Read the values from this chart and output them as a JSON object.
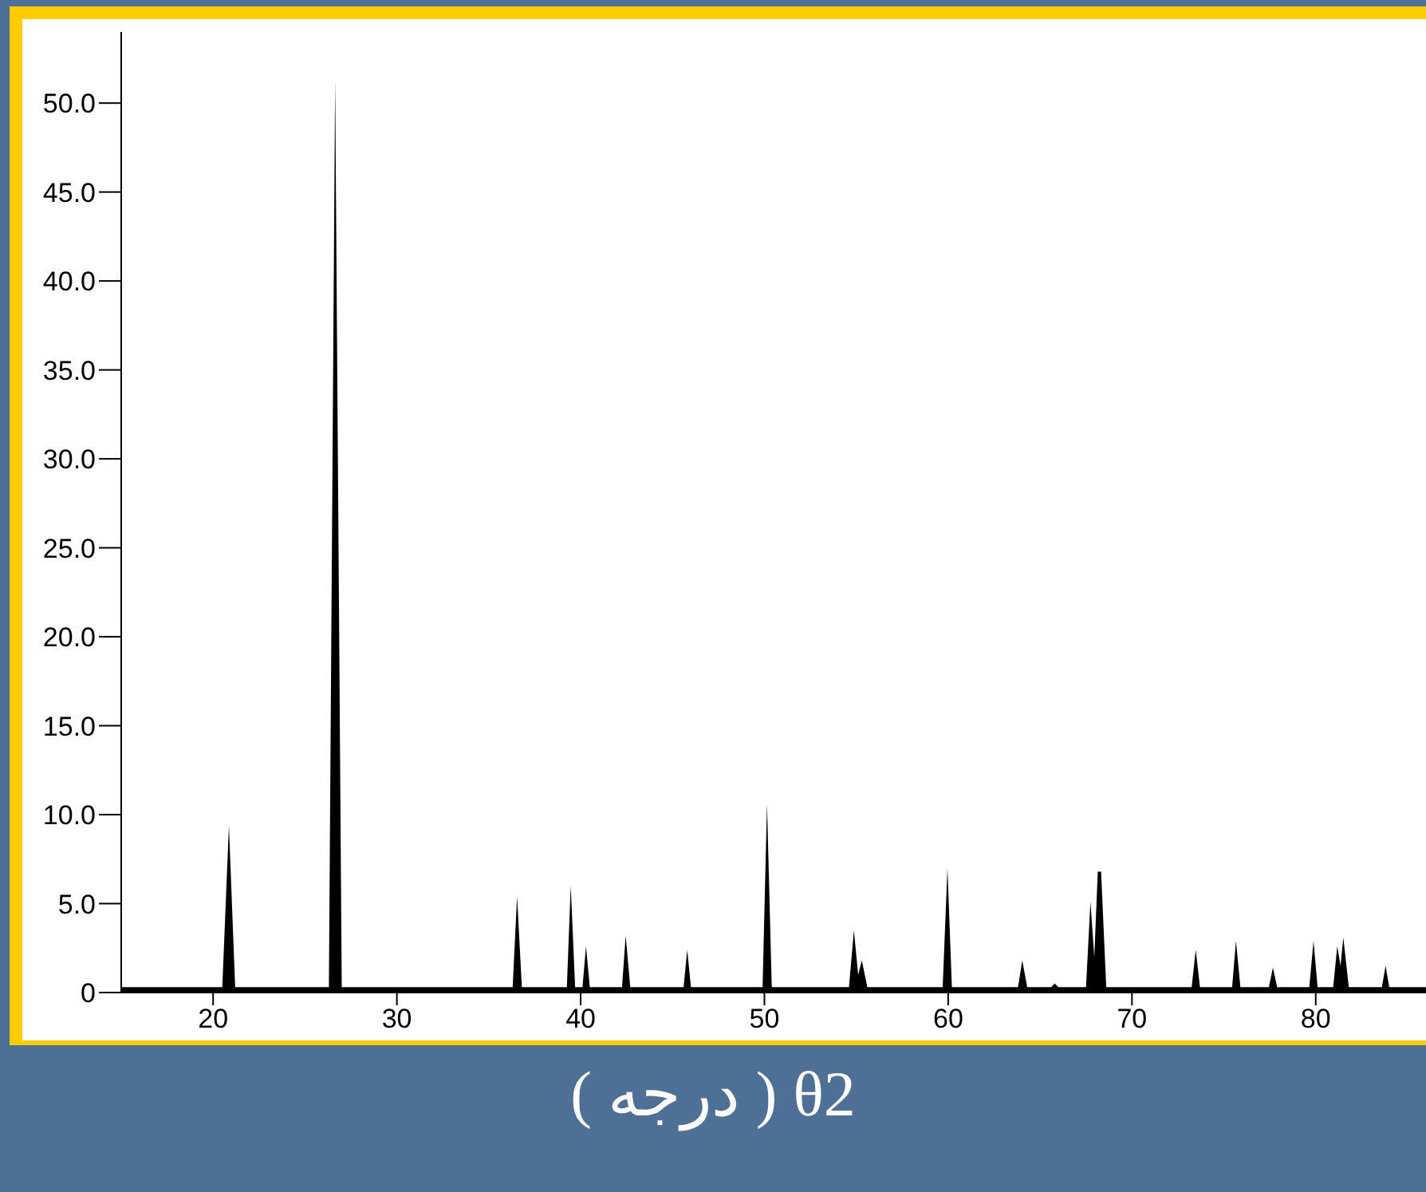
{
  "chart_data": {
    "type": "area",
    "xlabel": "( درجه ) θ2",
    "color": "#000000",
    "x": [
      15,
      20.5,
      20.86,
      21.2,
      26.3,
      26.64,
      27.0,
      36.3,
      36.54,
      36.8,
      39.25,
      39.46,
      39.7,
      40.1,
      40.29,
      40.5,
      42.25,
      42.45,
      42.7,
      45.6,
      45.8,
      46.0,
      49.9,
      50.14,
      50.4,
      54.6,
      54.87,
      55.1,
      55.3,
      55.6,
      59.7,
      59.96,
      60.2,
      63.8,
      64.03,
      64.3,
      65.6,
      65.8,
      66.0,
      67.5,
      67.74,
      67.95,
      68.14,
      68.32,
      68.6,
      73.25,
      73.47,
      73.7,
      75.45,
      75.66,
      75.9,
      77.45,
      77.67,
      77.9,
      79.65,
      79.88,
      80.1,
      80.95,
      81.17,
      81.35,
      81.5,
      81.8,
      83.6,
      83.8,
      84.0,
      86
    ],
    "values": [
      0.3,
      0.3,
      9.4,
      0.3,
      0.3,
      51.3,
      0.3,
      0.3,
      5.4,
      0.3,
      0.3,
      6.0,
      0.3,
      0.3,
      2.6,
      0.3,
      0.3,
      3.2,
      0.3,
      0.3,
      2.4,
      0.3,
      0.3,
      10.6,
      0.3,
      0.3,
      3.5,
      1.0,
      1.8,
      0.3,
      0.3,
      7.0,
      0.3,
      0.3,
      1.8,
      0.3,
      0.3,
      0.5,
      0.3,
      0.3,
      5.1,
      2.0,
      6.8,
      6.8,
      0.3,
      0.3,
      2.4,
      0.3,
      0.3,
      2.9,
      0.3,
      0.3,
      1.4,
      0.3,
      0.3,
      2.9,
      0.3,
      0.3,
      2.6,
      1.5,
      3.1,
      0.3,
      0.3,
      1.5,
      0.3,
      0.3
    ],
    "xlim": [
      15,
      86
    ],
    "xticks": [
      20,
      30,
      40,
      50,
      60,
      70,
      80
    ],
    "ylim": [
      0,
      54
    ],
    "yticks": [
      0,
      {
        "value": 5,
        "label": "5.0"
      },
      {
        "value": 10,
        "label": "10.0"
      },
      {
        "value": 15,
        "label": "15.0"
      },
      {
        "value": 20,
        "label": "20.0"
      },
      {
        "value": 25,
        "label": "25.0"
      },
      {
        "value": 30,
        "label": "30.0"
      },
      {
        "value": 35,
        "label": "35.0"
      },
      {
        "value": 40,
        "label": "40.0"
      },
      {
        "value": 45,
        "label": "45.0"
      },
      {
        "value": 50,
        "label": "50.0"
      }
    ]
  }
}
